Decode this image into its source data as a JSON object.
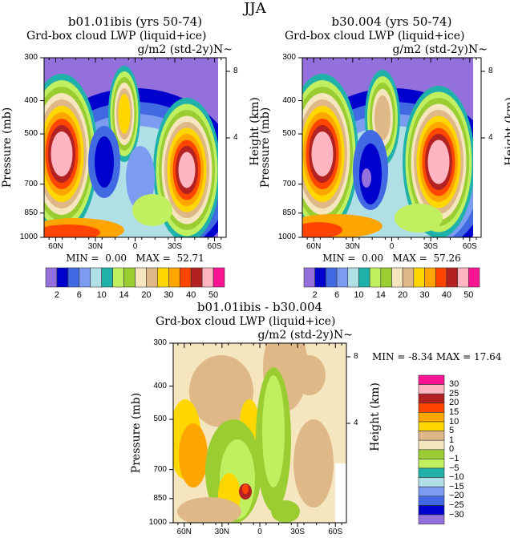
{
  "figure_title": "JJA",
  "chart_data": [
    {
      "type": "heatmap",
      "title": "b01.01ibis (yrs 50-74)",
      "subtitle_left": "Grd-box cloud LWP (liquid+ice)",
      "subtitle_right": "g/m2 (std-2y)N~",
      "ylabel": "Pressure (mb)",
      "ylabel_right": "Height (km)",
      "yticks": [
        "300",
        "400",
        "500",
        "700",
        "850",
        "1000"
      ],
      "yticks_right": [
        "8",
        "4"
      ],
      "xticks": [
        "60N",
        "30N",
        "0",
        "30S",
        "60S"
      ],
      "min_label": "MIN =",
      "min": "0.00",
      "max_label": "MAX =",
      "max": "52.71",
      "levels": [
        2,
        4,
        6,
        8,
        10,
        12,
        14,
        16,
        20,
        25,
        30,
        35,
        40,
        45,
        50
      ],
      "colorbar_labels": [
        "2",
        "6",
        "10",
        "14",
        "20",
        "30",
        "40",
        "50"
      ]
    },
    {
      "type": "heatmap",
      "title": "b30.004 (yrs 50-74)",
      "subtitle_left": "Grd-box cloud LWP (liquid+ice)",
      "subtitle_right": "g/m2 (std-2y)N~",
      "ylabel": "Pressure (mb)",
      "ylabel_right": "Height (km)",
      "yticks": [
        "300",
        "400",
        "500",
        "700",
        "850",
        "1000"
      ],
      "yticks_right": [
        "8",
        "4"
      ],
      "xticks": [
        "60N",
        "30N",
        "0",
        "30S",
        "60S"
      ],
      "min_label": "MIN =",
      "min": "0.00",
      "max_label": "MAX =",
      "max": "57.26",
      "levels": [
        2,
        4,
        6,
        8,
        10,
        12,
        14,
        16,
        20,
        25,
        30,
        35,
        40,
        45,
        50
      ],
      "colorbar_labels": [
        "2",
        "6",
        "10",
        "14",
        "20",
        "30",
        "40",
        "50"
      ]
    },
    {
      "type": "heatmap",
      "title": "b01.01ibis - b30.004",
      "subtitle_left": "Grd-box cloud LWP (liquid+ice)",
      "subtitle_right": "g/m2 (std-2y)N~",
      "ylabel": "Pressure (mb)",
      "ylabel_right": "Height (km)",
      "yticks": [
        "300",
        "400",
        "500",
        "700",
        "850",
        "1000"
      ],
      "yticks_right": [
        "8",
        "4"
      ],
      "xticks": [
        "60N",
        "30N",
        "0",
        "30S",
        "60S"
      ],
      "min_label": "MIN =",
      "min": "-8.34",
      "max_label": "MAX =",
      "max": "17.64",
      "levels": [
        -30,
        -25,
        -20,
        -15,
        -10,
        -5,
        -1,
        0,
        1,
        5,
        10,
        15,
        20,
        25,
        30
      ],
      "colorbar_labels": [
        "30",
        "25",
        "20",
        "15",
        "10",
        "5",
        "1",
        "0",
        "−1",
        "−5",
        "−10",
        "−15",
        "−20",
        "−25",
        "−30"
      ]
    }
  ],
  "colors": [
    "#9370DB",
    "#0000CD",
    "#4169E1",
    "#7B9CF0",
    "#B0E0E6",
    "#20B2AA",
    "#C0F060",
    "#9ACD32",
    "#F5E6C0",
    "#DEB887",
    "#FFD700",
    "#FFA500",
    "#FF4500",
    "#B22222",
    "#FFB6C1",
    "#FF1493"
  ]
}
